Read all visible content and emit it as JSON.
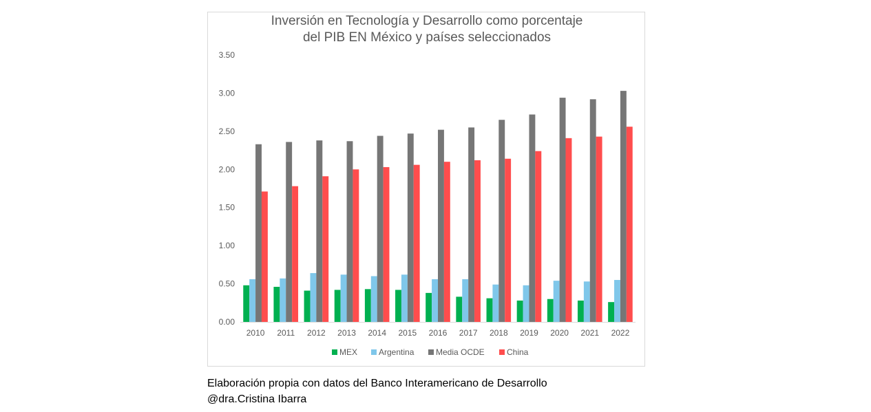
{
  "chart_data": {
    "type": "bar",
    "title_lines": [
      "Inversión en Tecnología y Desarrollo como porcentaje",
      "del PIB EN México y países seleccionados"
    ],
    "categories": [
      "2010",
      "2011",
      "2012",
      "2013",
      "2014",
      "2015",
      "2016",
      "2017",
      "2018",
      "2019",
      "2020",
      "2021",
      "2022"
    ],
    "series": [
      {
        "name": "MEX",
        "color": "#00b050",
        "values": [
          0.48,
          0.46,
          0.41,
          0.42,
          0.43,
          0.42,
          0.38,
          0.33,
          0.31,
          0.28,
          0.3,
          0.28,
          0.26
        ]
      },
      {
        "name": "Argentina",
        "color": "#7fc7ea",
        "values": [
          0.56,
          0.57,
          0.64,
          0.62,
          0.6,
          0.62,
          0.56,
          0.56,
          0.49,
          0.48,
          0.54,
          0.53,
          0.55
        ]
      },
      {
        "name": "Media OCDE",
        "color": "#767676",
        "values": [
          2.33,
          2.36,
          2.38,
          2.37,
          2.44,
          2.47,
          2.52,
          2.55,
          2.65,
          2.72,
          2.94,
          2.92,
          3.03
        ]
      },
      {
        "name": "China",
        "color": "#ff4d4d",
        "values": [
          1.71,
          1.78,
          1.91,
          2.0,
          2.03,
          2.06,
          2.1,
          2.12,
          2.14,
          2.24,
          2.41,
          2.43,
          2.56
        ]
      }
    ],
    "ylim": [
      0,
      3.5
    ],
    "yticks": [
      "0.00",
      "0.50",
      "1.00",
      "1.50",
      "2.00",
      "2.50",
      "3.00",
      "3.50"
    ],
    "grid": false,
    "legend_position": "bottom",
    "xlabel": "",
    "ylabel": ""
  },
  "captions": {
    "source": "Elaboración propia con datos del Banco Interamericano de Desarrollo",
    "author": "@dra.Cristina Ibarra"
  }
}
